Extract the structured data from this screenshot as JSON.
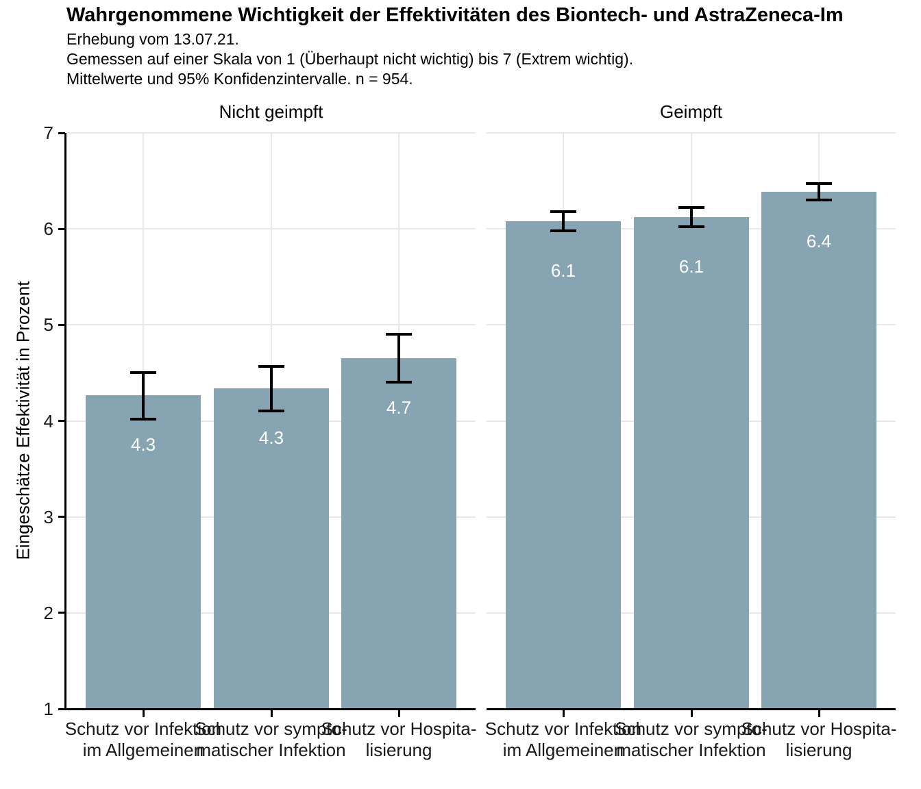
{
  "chart_data": {
    "type": "bar",
    "title": "Wahrgenommene Wichtigkeit der Effektivitäten des Biontech- und AstraZeneca-Im",
    "subtitle_lines": [
      "Erhebung vom 13.07.21.",
      "Gemessen auf einer Skala von 1 (Überhaupt nicht wichtig) bis 7 (Extrem wichtig).",
      "Mittelwerte und 95% Konfidenzintervalle. n = 954."
    ],
    "ylabel": "Eingeschätze Effektivität in Prozent",
    "xlabel": "",
    "ylim": [
      1,
      7
    ],
    "yticks": [
      1,
      2,
      3,
      4,
      5,
      6,
      7
    ],
    "legend": "none",
    "grid": "major gridlines only, light gray, horizontal at integer values and vertical at category centers",
    "error_bars": "95% confidence intervals",
    "categories": [
      [
        "Schutz vor Infektion",
        "im Allgemeinen"
      ],
      [
        "Schutz vor sympto-",
        "matischer Infektion"
      ],
      [
        "Schutz vor Hospita-",
        "lisierung"
      ]
    ],
    "facets": [
      {
        "label": "Nicht geimpft",
        "values": [
          4.27,
          4.34,
          4.65
        ],
        "bar_labels": [
          "4.3",
          "4.3",
          "4.7"
        ],
        "ci_low": [
          4.02,
          4.1,
          4.4
        ],
        "ci_high": [
          4.5,
          4.57,
          4.9
        ]
      },
      {
        "label": "Geimpft",
        "values": [
          6.08,
          6.12,
          6.39
        ],
        "bar_labels": [
          "6.1",
          "6.1",
          "6.4"
        ],
        "ci_low": [
          5.98,
          6.02,
          6.3
        ],
        "ci_high": [
          6.18,
          6.22,
          6.47
        ]
      }
    ],
    "colors": {
      "bar": "#87a4b2",
      "grid": "#e8e8e8",
      "axis": "#000000",
      "bar_label": "#ffffff",
      "error_bar": "#000000"
    }
  }
}
